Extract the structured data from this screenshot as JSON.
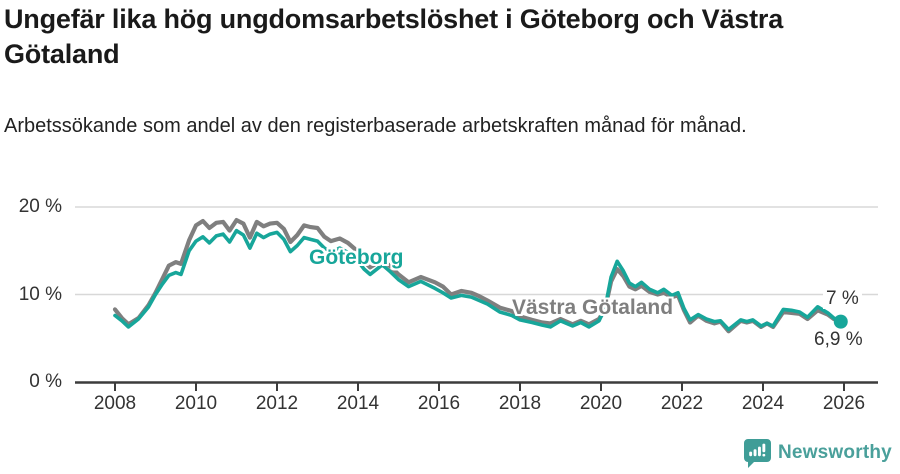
{
  "header": {
    "title": "Ungefär lika hög ungdomsarbetslöshet i Göteborg och Västra Götaland",
    "subtitle": "Arbetssökande som andel av den registerbaserade arbetskraften månad för månad."
  },
  "chart_data": {
    "type": "line",
    "title": "Ungefär lika hög ungdomsarbetslöshet i Göteborg och Västra Götaland",
    "xlabel": "",
    "ylabel": "",
    "x_unit": "year (monthly data)",
    "y_unit": "%",
    "xlim": [
      2007.0,
      2026.85
    ],
    "ylim": [
      0,
      21
    ],
    "grid": "horizontal",
    "x_ticks": [
      2008,
      2010,
      2012,
      2014,
      2016,
      2018,
      2020,
      2022,
      2024,
      2026
    ],
    "y_ticks": [
      {
        "value": 0,
        "label": "0 %"
      },
      {
        "value": 10,
        "label": "10 %"
      },
      {
        "value": 20,
        "label": "20 %"
      }
    ],
    "legend_position": "inline-labels",
    "series": [
      {
        "name": "Västra Götaland",
        "color": "#7f7f7f",
        "end_label": "7 %",
        "end_value": 7.0,
        "end_dot": false,
        "points": [
          [
            2008.0,
            8.3
          ],
          [
            2008.17,
            7.3
          ],
          [
            2008.33,
            6.6
          ],
          [
            2008.58,
            7.3
          ],
          [
            2008.83,
            8.8
          ],
          [
            2009.0,
            10.2
          ],
          [
            2009.17,
            11.8
          ],
          [
            2009.33,
            13.3
          ],
          [
            2009.5,
            13.7
          ],
          [
            2009.63,
            13.5
          ],
          [
            2009.83,
            16.2
          ],
          [
            2010.0,
            17.9
          ],
          [
            2010.17,
            18.4
          ],
          [
            2010.33,
            17.6
          ],
          [
            2010.5,
            18.2
          ],
          [
            2010.67,
            18.3
          ],
          [
            2010.83,
            17.3
          ],
          [
            2011.0,
            18.5
          ],
          [
            2011.17,
            18.1
          ],
          [
            2011.33,
            16.5
          ],
          [
            2011.5,
            18.3
          ],
          [
            2011.67,
            17.8
          ],
          [
            2011.83,
            18.1
          ],
          [
            2012.0,
            18.2
          ],
          [
            2012.17,
            17.5
          ],
          [
            2012.33,
            16.0
          ],
          [
            2012.5,
            16.8
          ],
          [
            2012.67,
            17.9
          ],
          [
            2012.83,
            17.7
          ],
          [
            2013.0,
            17.6
          ],
          [
            2013.17,
            16.6
          ],
          [
            2013.33,
            16.1
          ],
          [
            2013.55,
            16.4
          ],
          [
            2013.75,
            15.9
          ],
          [
            2013.95,
            15.1
          ],
          [
            2014.15,
            13.8
          ],
          [
            2014.3,
            13.1
          ],
          [
            2014.6,
            14.0
          ],
          [
            2014.8,
            13.2
          ],
          [
            2015.0,
            12.3
          ],
          [
            2015.25,
            11.4
          ],
          [
            2015.55,
            12.0
          ],
          [
            2015.9,
            11.4
          ],
          [
            2016.1,
            10.9
          ],
          [
            2016.3,
            10.0
          ],
          [
            2016.55,
            10.4
          ],
          [
            2016.8,
            10.2
          ],
          [
            2017.0,
            9.8
          ],
          [
            2017.2,
            9.3
          ],
          [
            2017.5,
            8.5
          ],
          [
            2017.8,
            8.1
          ],
          [
            2018.0,
            7.5
          ],
          [
            2018.3,
            7.1
          ],
          [
            2018.55,
            6.8
          ],
          [
            2018.75,
            6.7
          ],
          [
            2019.0,
            7.2
          ],
          [
            2019.3,
            6.6
          ],
          [
            2019.5,
            7.0
          ],
          [
            2019.7,
            6.6
          ],
          [
            2019.95,
            7.2
          ],
          [
            2020.1,
            8.3
          ],
          [
            2020.25,
            11.5
          ],
          [
            2020.4,
            12.9
          ],
          [
            2020.55,
            12.1
          ],
          [
            2020.7,
            10.9
          ],
          [
            2020.85,
            10.6
          ],
          [
            2021.0,
            11.0
          ],
          [
            2021.2,
            10.3
          ],
          [
            2021.4,
            10.0
          ],
          [
            2021.55,
            10.2
          ],
          [
            2021.75,
            9.7
          ],
          [
            2021.9,
            9.9
          ],
          [
            2022.05,
            8.2
          ],
          [
            2022.2,
            6.8
          ],
          [
            2022.4,
            7.6
          ],
          [
            2022.6,
            7.0
          ],
          [
            2022.8,
            6.7
          ],
          [
            2022.95,
            6.9
          ],
          [
            2023.15,
            5.8
          ],
          [
            2023.45,
            7.0
          ],
          [
            2023.6,
            6.8
          ],
          [
            2023.75,
            7.0
          ],
          [
            2023.95,
            6.3
          ],
          [
            2024.1,
            6.7
          ],
          [
            2024.25,
            6.3
          ],
          [
            2024.5,
            8.0
          ],
          [
            2024.7,
            7.9
          ],
          [
            2024.9,
            7.8
          ],
          [
            2025.1,
            7.2
          ],
          [
            2025.35,
            8.2
          ],
          [
            2025.6,
            7.7
          ],
          [
            2025.75,
            7.2
          ],
          [
            2025.92,
            7.0
          ]
        ]
      },
      {
        "name": "Göteborg",
        "color": "#17a69a",
        "end_label": "6,9 %",
        "end_value": 6.9,
        "end_dot": true,
        "points": [
          [
            2008.0,
            7.6
          ],
          [
            2008.17,
            7.0
          ],
          [
            2008.33,
            6.3
          ],
          [
            2008.58,
            7.2
          ],
          [
            2008.83,
            8.6
          ],
          [
            2009.0,
            10.0
          ],
          [
            2009.17,
            11.2
          ],
          [
            2009.33,
            12.2
          ],
          [
            2009.5,
            12.5
          ],
          [
            2009.63,
            12.3
          ],
          [
            2009.83,
            15.0
          ],
          [
            2010.0,
            16.1
          ],
          [
            2010.17,
            16.6
          ],
          [
            2010.33,
            15.9
          ],
          [
            2010.5,
            16.7
          ],
          [
            2010.67,
            16.9
          ],
          [
            2010.83,
            16.0
          ],
          [
            2011.0,
            17.3
          ],
          [
            2011.17,
            16.8
          ],
          [
            2011.33,
            15.3
          ],
          [
            2011.5,
            17.0
          ],
          [
            2011.67,
            16.5
          ],
          [
            2011.83,
            16.9
          ],
          [
            2012.0,
            17.1
          ],
          [
            2012.17,
            16.3
          ],
          [
            2012.33,
            14.9
          ],
          [
            2012.5,
            15.6
          ],
          [
            2012.67,
            16.5
          ],
          [
            2012.83,
            16.3
          ],
          [
            2013.0,
            16.1
          ],
          [
            2013.17,
            15.3
          ],
          [
            2013.33,
            14.9
          ],
          [
            2013.55,
            15.3
          ],
          [
            2013.75,
            14.8
          ],
          [
            2013.95,
            14.1
          ],
          [
            2014.15,
            12.9
          ],
          [
            2014.3,
            12.3
          ],
          [
            2014.6,
            13.4
          ],
          [
            2014.8,
            12.6
          ],
          [
            2015.0,
            11.7
          ],
          [
            2015.25,
            10.9
          ],
          [
            2015.55,
            11.5
          ],
          [
            2015.9,
            10.7
          ],
          [
            2016.1,
            10.2
          ],
          [
            2016.3,
            9.6
          ],
          [
            2016.55,
            9.9
          ],
          [
            2016.8,
            9.7
          ],
          [
            2017.0,
            9.3
          ],
          [
            2017.2,
            8.9
          ],
          [
            2017.5,
            8.0
          ],
          [
            2017.8,
            7.6
          ],
          [
            2018.0,
            7.1
          ],
          [
            2018.3,
            6.8
          ],
          [
            2018.55,
            6.5
          ],
          [
            2018.75,
            6.3
          ],
          [
            2019.0,
            7.0
          ],
          [
            2019.3,
            6.4
          ],
          [
            2019.5,
            6.8
          ],
          [
            2019.7,
            6.3
          ],
          [
            2019.95,
            7.0
          ],
          [
            2020.1,
            8.4
          ],
          [
            2020.25,
            12.0
          ],
          [
            2020.4,
            13.8
          ],
          [
            2020.55,
            12.7
          ],
          [
            2020.7,
            11.3
          ],
          [
            2020.85,
            10.9
          ],
          [
            2021.0,
            11.4
          ],
          [
            2021.2,
            10.6
          ],
          [
            2021.4,
            10.2
          ],
          [
            2021.55,
            10.6
          ],
          [
            2021.75,
            9.9
          ],
          [
            2021.9,
            10.2
          ],
          [
            2022.05,
            8.4
          ],
          [
            2022.2,
            7.1
          ],
          [
            2022.4,
            7.7
          ],
          [
            2022.6,
            7.2
          ],
          [
            2022.8,
            6.9
          ],
          [
            2022.95,
            7.0
          ],
          [
            2023.15,
            6.0
          ],
          [
            2023.45,
            7.1
          ],
          [
            2023.6,
            6.9
          ],
          [
            2023.75,
            7.1
          ],
          [
            2023.95,
            6.4
          ],
          [
            2024.1,
            6.7
          ],
          [
            2024.25,
            6.4
          ],
          [
            2024.5,
            8.3
          ],
          [
            2024.7,
            8.2
          ],
          [
            2024.9,
            8.0
          ],
          [
            2025.1,
            7.4
          ],
          [
            2025.35,
            8.6
          ],
          [
            2025.6,
            7.9
          ],
          [
            2025.75,
            7.3
          ],
          [
            2025.92,
            6.9
          ]
        ]
      }
    ]
  },
  "colors": {
    "goteborg_line": "#17a69a",
    "vastra_gotaland_line": "#7f7f7f",
    "gridline": "#d8d8d8",
    "axis": "#3c3c3c",
    "axis_text": "#333333",
    "title_text": "#1a1a1a",
    "brand_teal": "#4aa09b",
    "brand_icon": "#3f9d97"
  },
  "footer": {
    "brand": "Newsworthy"
  }
}
